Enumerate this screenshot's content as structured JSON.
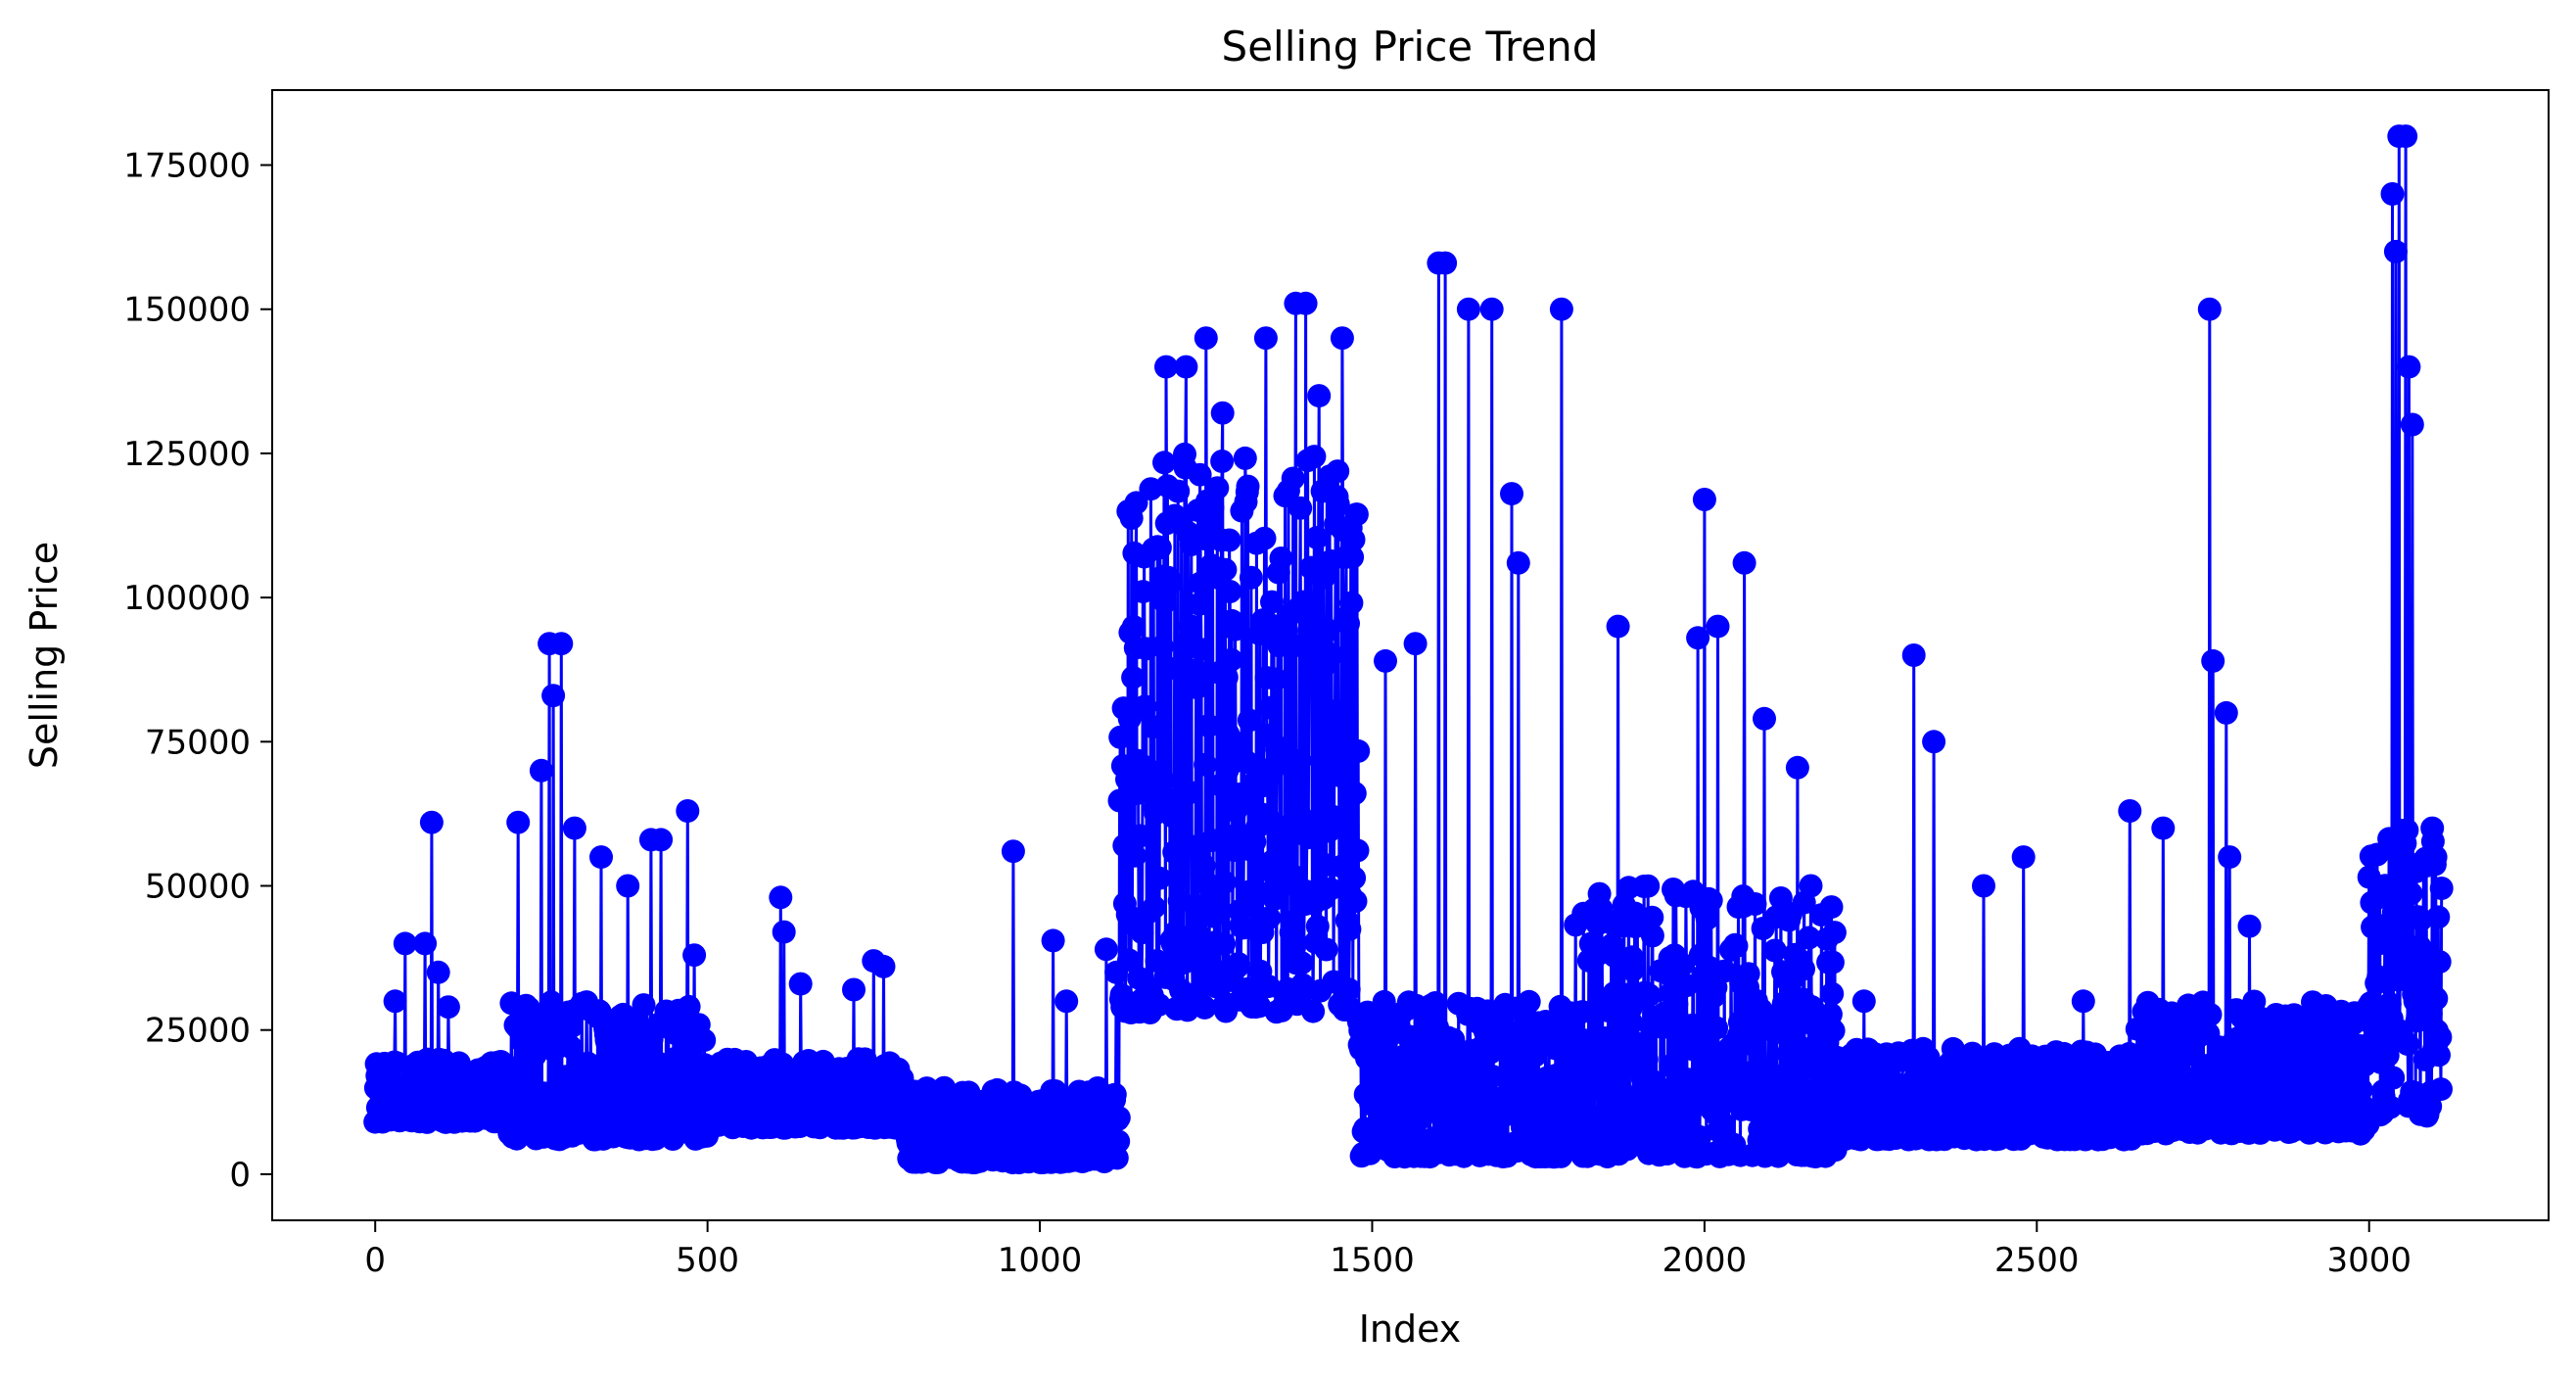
{
  "chart_data": {
    "type": "line",
    "title": "Selling Price Trend",
    "xlabel": "Index",
    "ylabel": "Selling Price",
    "xlim": [
      -155,
      3270
    ],
    "ylim": [
      -8000,
      188000
    ],
    "x_ticks": [
      0,
      500,
      1000,
      1500,
      2000,
      2500,
      3000
    ],
    "y_ticks": [
      0,
      25000,
      50000,
      75000,
      100000,
      125000,
      150000,
      175000
    ],
    "x_tick_labels": [
      "0",
      "500",
      "1000",
      "1500",
      "2000",
      "2500",
      "3000"
    ],
    "y_tick_labels": [
      "0",
      "25000",
      "50000",
      "75000",
      "100000",
      "125000",
      "150000",
      "175000"
    ],
    "grid": false,
    "legend": "none",
    "series": [
      {
        "color": "#0000ff",
        "marker": "circle",
        "n_points": 3110,
        "index_range": [
          0,
          3109
        ],
        "segments": [
          {
            "range": [
              0,
              200
            ],
            "low": 9000,
            "high": 20000,
            "peaks": [
              [
                30,
                30000
              ],
              [
                45,
                40000
              ],
              [
                75,
                40000
              ],
              [
                85,
                61000
              ],
              [
                95,
                35000
              ],
              [
                110,
                29000
              ]
            ]
          },
          {
            "range": [
              200,
              500
            ],
            "low": 6000,
            "high": 30000,
            "peaks": [
              [
                215,
                61000
              ],
              [
                250,
                70000
              ],
              [
                262,
                92000
              ],
              [
                268,
                83000
              ],
              [
                280,
                92000
              ],
              [
                300,
                60000
              ],
              [
                340,
                55000
              ],
              [
                380,
                50000
              ],
              [
                415,
                58000
              ],
              [
                430,
                58000
              ],
              [
                470,
                63000
              ],
              [
                480,
                38000
              ]
            ]
          },
          {
            "range": [
              500,
              800
            ],
            "low": 8000,
            "high": 20000,
            "peaks": [
              [
                610,
                48000
              ],
              [
                615,
                42000
              ],
              [
                640,
                33000
              ],
              [
                720,
                32000
              ],
              [
                750,
                37000
              ],
              [
                765,
                36000
              ]
            ]
          },
          {
            "range": [
              800,
              1120
            ],
            "low": 2000,
            "high": 15000,
            "peaks": [
              [
                960,
                56000
              ],
              [
                1020,
                40500
              ],
              [
                1040,
                30000
              ],
              [
                1100,
                39000
              ],
              [
                1115,
                35000
              ]
            ]
          },
          {
            "range": [
              1120,
              1480
            ],
            "low": 28000,
            "high": 125000,
            "peaks": [
              [
                1135,
                79000
              ],
              [
                1190,
                140000
              ],
              [
                1220,
                140000
              ],
              [
                1250,
                145000
              ],
              [
                1275,
                132000
              ],
              [
                1340,
                145000
              ],
              [
                1385,
                151000
              ],
              [
                1400,
                151000
              ],
              [
                1420,
                135000
              ],
              [
                1455,
                145000
              ],
              [
                1470,
                107000
              ]
            ]
          },
          {
            "range": [
              1480,
              1800
            ],
            "low": 3000,
            "high": 30000,
            "peaks": [
              [
                1520,
                89000
              ],
              [
                1565,
                92000
              ],
              [
                1600,
                158000
              ],
              [
                1610,
                158000
              ],
              [
                1645,
                150000
              ],
              [
                1680,
                150000
              ],
              [
                1710,
                118000
              ],
              [
                1720,
                106000
              ],
              [
                1785,
                150000
              ]
            ]
          },
          {
            "range": [
              1800,
              2200
            ],
            "low": 3000,
            "high": 50000,
            "peaks": [
              [
                1870,
                95000
              ],
              [
                1990,
                93000
              ],
              [
                2000,
                117000
              ],
              [
                2020,
                95000
              ],
              [
                2060,
                106000
              ],
              [
                2090,
                79000
              ],
              [
                2140,
                70500
              ],
              [
                2160,
                50000
              ]
            ]
          },
          {
            "range": [
              2200,
              2650
            ],
            "low": 6000,
            "high": 22000,
            "peaks": [
              [
                2240,
                30000
              ],
              [
                2315,
                90000
              ],
              [
                2345,
                75000
              ],
              [
                2420,
                50000
              ],
              [
                2480,
                55000
              ],
              [
                2570,
                30000
              ],
              [
                2640,
                63000
              ]
            ]
          },
          {
            "range": [
              2650,
              3000
            ],
            "low": 7000,
            "high": 30000,
            "peaks": [
              [
                2690,
                60000
              ],
              [
                2760,
                150000
              ],
              [
                2765,
                89000
              ],
              [
                2785,
                80000
              ],
              [
                2790,
                55000
              ],
              [
                2820,
                43000
              ]
            ]
          },
          {
            "range": [
              3000,
              3109
            ],
            "low": 10000,
            "high": 60000,
            "peaks": [
              [
                3015,
                40000
              ],
              [
                3035,
                170000
              ],
              [
                3040,
                160000
              ],
              [
                3045,
                180000
              ],
              [
                3055,
                180000
              ],
              [
                3060,
                140000
              ],
              [
                3065,
                130000
              ],
              [
                3095,
                60000
              ],
              [
                3100,
                55000
              ]
            ]
          }
        ]
      }
    ]
  }
}
